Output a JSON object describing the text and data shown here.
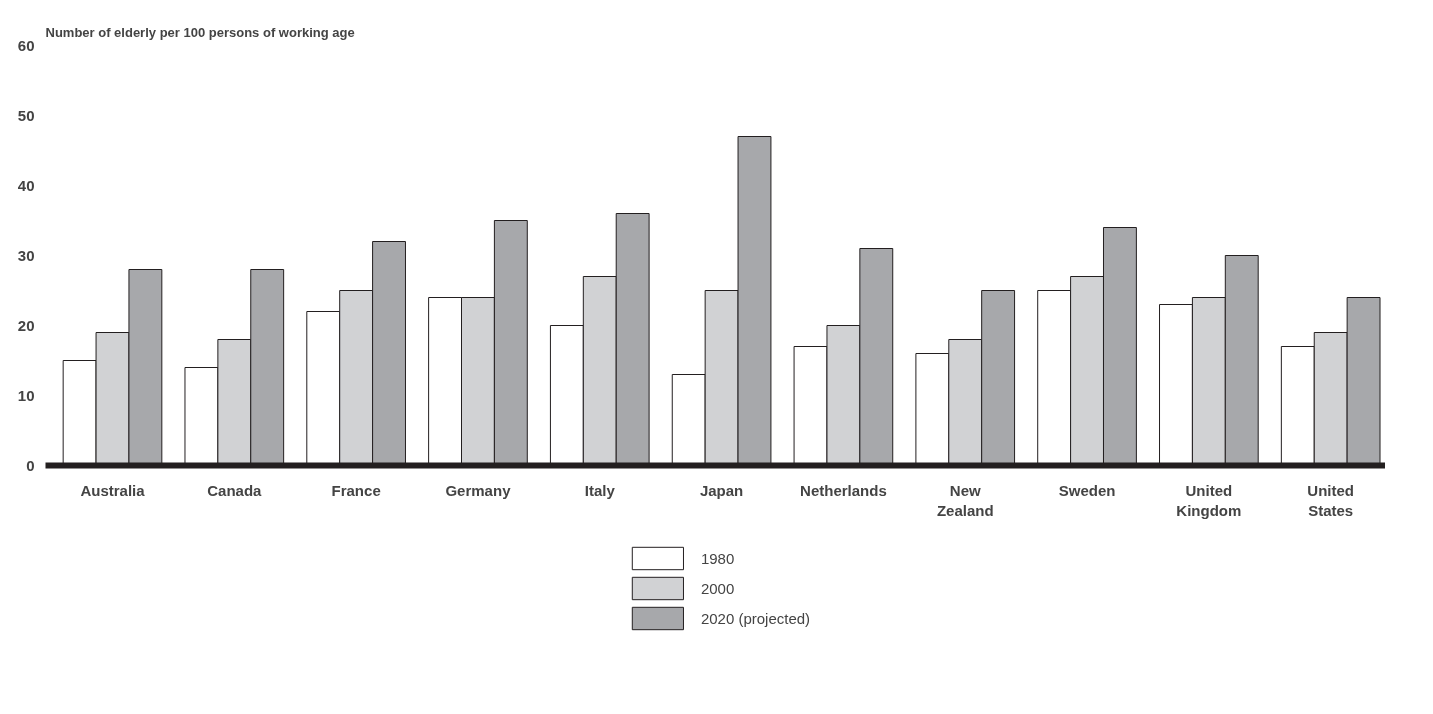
{
  "chart_data": {
    "type": "bar",
    "ylabel": "Number of elderly per 100 persons of working age",
    "categories": [
      "Australia",
      "Canada",
      "France",
      "Germany",
      "Italy",
      "Japan",
      "Netherlands",
      "New Zealand",
      "Sweden",
      "United Kingdom",
      "United States"
    ],
    "series": [
      {
        "name": "1980",
        "color": "#ffffff",
        "values": [
          15,
          14,
          22,
          24,
          20,
          13,
          17,
          16,
          25,
          23,
          17
        ]
      },
      {
        "name": "2000",
        "color": "#d1d2d4",
        "values": [
          19,
          18,
          25,
          24,
          27,
          25,
          20,
          18,
          27,
          24,
          19
        ]
      },
      {
        "name": "2020 (projected)",
        "color": "#a7a8ab",
        "values": [
          28,
          28,
          32,
          35,
          36,
          47,
          31,
          25,
          34,
          30,
          24
        ]
      }
    ],
    "ylim": [
      0,
      60
    ],
    "yticks": [
      0,
      10,
      20,
      30,
      40,
      50,
      60
    ],
    "grid": false,
    "legend": "bottom"
  }
}
